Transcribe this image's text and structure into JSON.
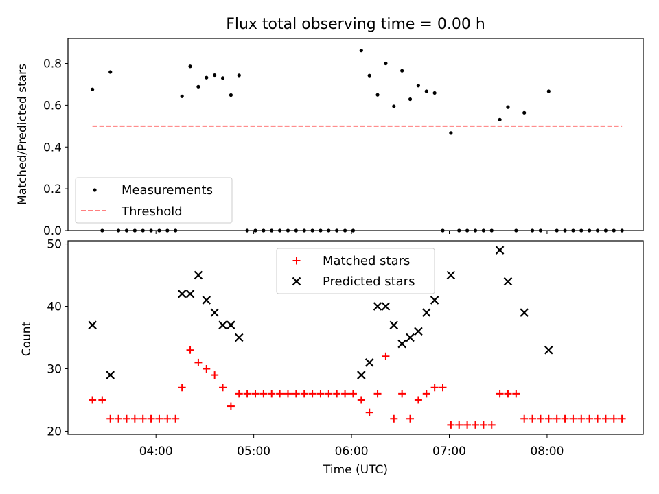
{
  "figure": {
    "title": "Flux total observing time = 0.00 h"
  },
  "chart_data": [
    {
      "type": "scatter",
      "panel": "top",
      "ylabel": "Matched/Predicted stars",
      "ylim": [
        0,
        0.92
      ],
      "yticks": [
        0.0,
        0.2,
        0.4,
        0.6,
        0.8
      ],
      "ytick_labels": [
        "0.0",
        "0.2",
        "0.4",
        "0.6",
        "0.8"
      ],
      "xlim": [
        "03:06",
        "08:59"
      ],
      "legend_position": "lower-left",
      "series": [
        {
          "name": "Measurements",
          "marker": "dot",
          "color": "#000000",
          "points": [
            [
              "03:21",
              0.676
            ],
            [
              "03:27",
              0.0
            ],
            [
              "03:32",
              0.759
            ],
            [
              "03:37",
              0.0
            ],
            [
              "03:42",
              0.0
            ],
            [
              "03:47",
              0.0
            ],
            [
              "03:52",
              0.0
            ],
            [
              "03:57",
              0.0
            ],
            [
              "04:02",
              0.0
            ],
            [
              "04:07",
              0.0
            ],
            [
              "04:12",
              0.0
            ],
            [
              "04:16",
              0.643
            ],
            [
              "04:21",
              0.786
            ],
            [
              "04:26",
              0.689
            ],
            [
              "04:31",
              0.732
            ],
            [
              "04:36",
              0.744
            ],
            [
              "04:41",
              0.73
            ],
            [
              "04:46",
              0.649
            ],
            [
              "04:51",
              0.743
            ],
            [
              "04:56",
              0.0
            ],
            [
              "05:01",
              0.0
            ],
            [
              "05:06",
              0.0
            ],
            [
              "05:11",
              0.0
            ],
            [
              "05:16",
              0.0
            ],
            [
              "05:21",
              0.0
            ],
            [
              "05:26",
              0.0
            ],
            [
              "05:31",
              0.0
            ],
            [
              "05:36",
              0.0
            ],
            [
              "05:41",
              0.0
            ],
            [
              "05:46",
              0.0
            ],
            [
              "05:51",
              0.0
            ],
            [
              "05:56",
              0.0
            ],
            [
              "06:01",
              0.0
            ],
            [
              "06:06",
              0.862
            ],
            [
              "06:11",
              0.742
            ],
            [
              "06:16",
              0.65
            ],
            [
              "06:21",
              0.8
            ],
            [
              "06:26",
              0.595
            ],
            [
              "06:31",
              0.765
            ],
            [
              "06:36",
              0.629
            ],
            [
              "06:41",
              0.694
            ],
            [
              "06:46",
              0.667
            ],
            [
              "06:51",
              0.659
            ],
            [
              "06:56",
              0.0
            ],
            [
              "07:01",
              0.467
            ],
            [
              "07:06",
              0.0
            ],
            [
              "07:11",
              0.0
            ],
            [
              "07:16",
              0.0
            ],
            [
              "07:21",
              0.0
            ],
            [
              "07:26",
              0.0
            ],
            [
              "07:31",
              0.531
            ],
            [
              "07:36",
              0.591
            ],
            [
              "07:41",
              0.0
            ],
            [
              "07:46",
              0.564
            ],
            [
              "07:51",
              0.0
            ],
            [
              "07:56",
              0.0
            ],
            [
              "08:01",
              0.667
            ],
            [
              "08:06",
              0.0
            ],
            [
              "08:11",
              0.0
            ],
            [
              "08:16",
              0.0
            ],
            [
              "08:21",
              0.0
            ],
            [
              "08:26",
              0.0
            ],
            [
              "08:31",
              0.0
            ],
            [
              "08:36",
              0.0
            ],
            [
              "08:41",
              0.0
            ],
            [
              "08:46",
              0.0
            ]
          ]
        },
        {
          "name": "Threshold",
          "style": "dashed-line",
          "color": "#ff7f7f",
          "points": [
            [
              "03:21",
              0.5
            ],
            [
              "08:46",
              0.5
            ]
          ]
        }
      ]
    },
    {
      "type": "scatter",
      "panel": "bottom",
      "xlabel": "Time (UTC)",
      "ylabel": "Count",
      "ylim": [
        19.5,
        50.5
      ],
      "yticks": [
        20,
        30,
        40,
        50
      ],
      "ytick_labels": [
        "20",
        "30",
        "40",
        "50"
      ],
      "xlim": [
        "03:06",
        "08:59"
      ],
      "xticks": [
        "04:00",
        "05:00",
        "06:00",
        "07:00",
        "08:00"
      ],
      "xtick_labels": [
        "04:00",
        "05:00",
        "06:00",
        "07:00",
        "08:00"
      ],
      "legend_position": "upper-center",
      "series": [
        {
          "name": "Matched stars",
          "marker": "plus",
          "color": "#ff0000",
          "points": [
            [
              "03:21",
              25
            ],
            [
              "03:27",
              25
            ],
            [
              "03:32",
              22
            ],
            [
              "03:37",
              22
            ],
            [
              "03:42",
              22
            ],
            [
              "03:47",
              22
            ],
            [
              "03:52",
              22
            ],
            [
              "03:57",
              22
            ],
            [
              "04:02",
              22
            ],
            [
              "04:07",
              22
            ],
            [
              "04:12",
              22
            ],
            [
              "04:16",
              27
            ],
            [
              "04:21",
              33
            ],
            [
              "04:26",
              31
            ],
            [
              "04:31",
              30
            ],
            [
              "04:36",
              29
            ],
            [
              "04:41",
              27
            ],
            [
              "04:46",
              24
            ],
            [
              "04:51",
              26
            ],
            [
              "04:56",
              26
            ],
            [
              "05:01",
              26
            ],
            [
              "05:06",
              26
            ],
            [
              "05:11",
              26
            ],
            [
              "05:16",
              26
            ],
            [
              "05:21",
              26
            ],
            [
              "05:26",
              26
            ],
            [
              "05:31",
              26
            ],
            [
              "05:36",
              26
            ],
            [
              "05:41",
              26
            ],
            [
              "05:46",
              26
            ],
            [
              "05:51",
              26
            ],
            [
              "05:56",
              26
            ],
            [
              "06:01",
              26
            ],
            [
              "06:06",
              25
            ],
            [
              "06:11",
              23
            ],
            [
              "06:16",
              26
            ],
            [
              "06:21",
              32
            ],
            [
              "06:26",
              22
            ],
            [
              "06:31",
              26
            ],
            [
              "06:36",
              22
            ],
            [
              "06:41",
              25
            ],
            [
              "06:46",
              26
            ],
            [
              "06:51",
              27
            ],
            [
              "06:56",
              27
            ],
            [
              "07:01",
              21
            ],
            [
              "07:06",
              21
            ],
            [
              "07:11",
              21
            ],
            [
              "07:16",
              21
            ],
            [
              "07:21",
              21
            ],
            [
              "07:26",
              21
            ],
            [
              "07:31",
              26
            ],
            [
              "07:36",
              26
            ],
            [
              "07:41",
              26
            ],
            [
              "07:46",
              22
            ],
            [
              "07:51",
              22
            ],
            [
              "07:56",
              22
            ],
            [
              "08:01",
              22
            ],
            [
              "08:06",
              22
            ],
            [
              "08:11",
              22
            ],
            [
              "08:16",
              22
            ],
            [
              "08:21",
              22
            ],
            [
              "08:26",
              22
            ],
            [
              "08:31",
              22
            ],
            [
              "08:36",
              22
            ],
            [
              "08:41",
              22
            ],
            [
              "08:46",
              22
            ]
          ]
        },
        {
          "name": "Predicted stars",
          "marker": "x",
          "color": "#000000",
          "points": [
            [
              "03:21",
              37
            ],
            [
              "03:32",
              29
            ],
            [
              "04:16",
              42
            ],
            [
              "04:21",
              42
            ],
            [
              "04:26",
              45
            ],
            [
              "04:31",
              41
            ],
            [
              "04:36",
              39
            ],
            [
              "04:41",
              37
            ],
            [
              "04:46",
              37
            ],
            [
              "04:51",
              35
            ],
            [
              "06:06",
              29
            ],
            [
              "06:11",
              31
            ],
            [
              "06:16",
              40
            ],
            [
              "06:21",
              40
            ],
            [
              "06:26",
              37
            ],
            [
              "06:31",
              34
            ],
            [
              "06:36",
              35
            ],
            [
              "06:41",
              36
            ],
            [
              "06:46",
              39
            ],
            [
              "06:51",
              41
            ],
            [
              "07:01",
              45
            ],
            [
              "07:31",
              49
            ],
            [
              "07:36",
              44
            ],
            [
              "07:46",
              39
            ],
            [
              "08:01",
              33
            ]
          ]
        }
      ]
    }
  ]
}
